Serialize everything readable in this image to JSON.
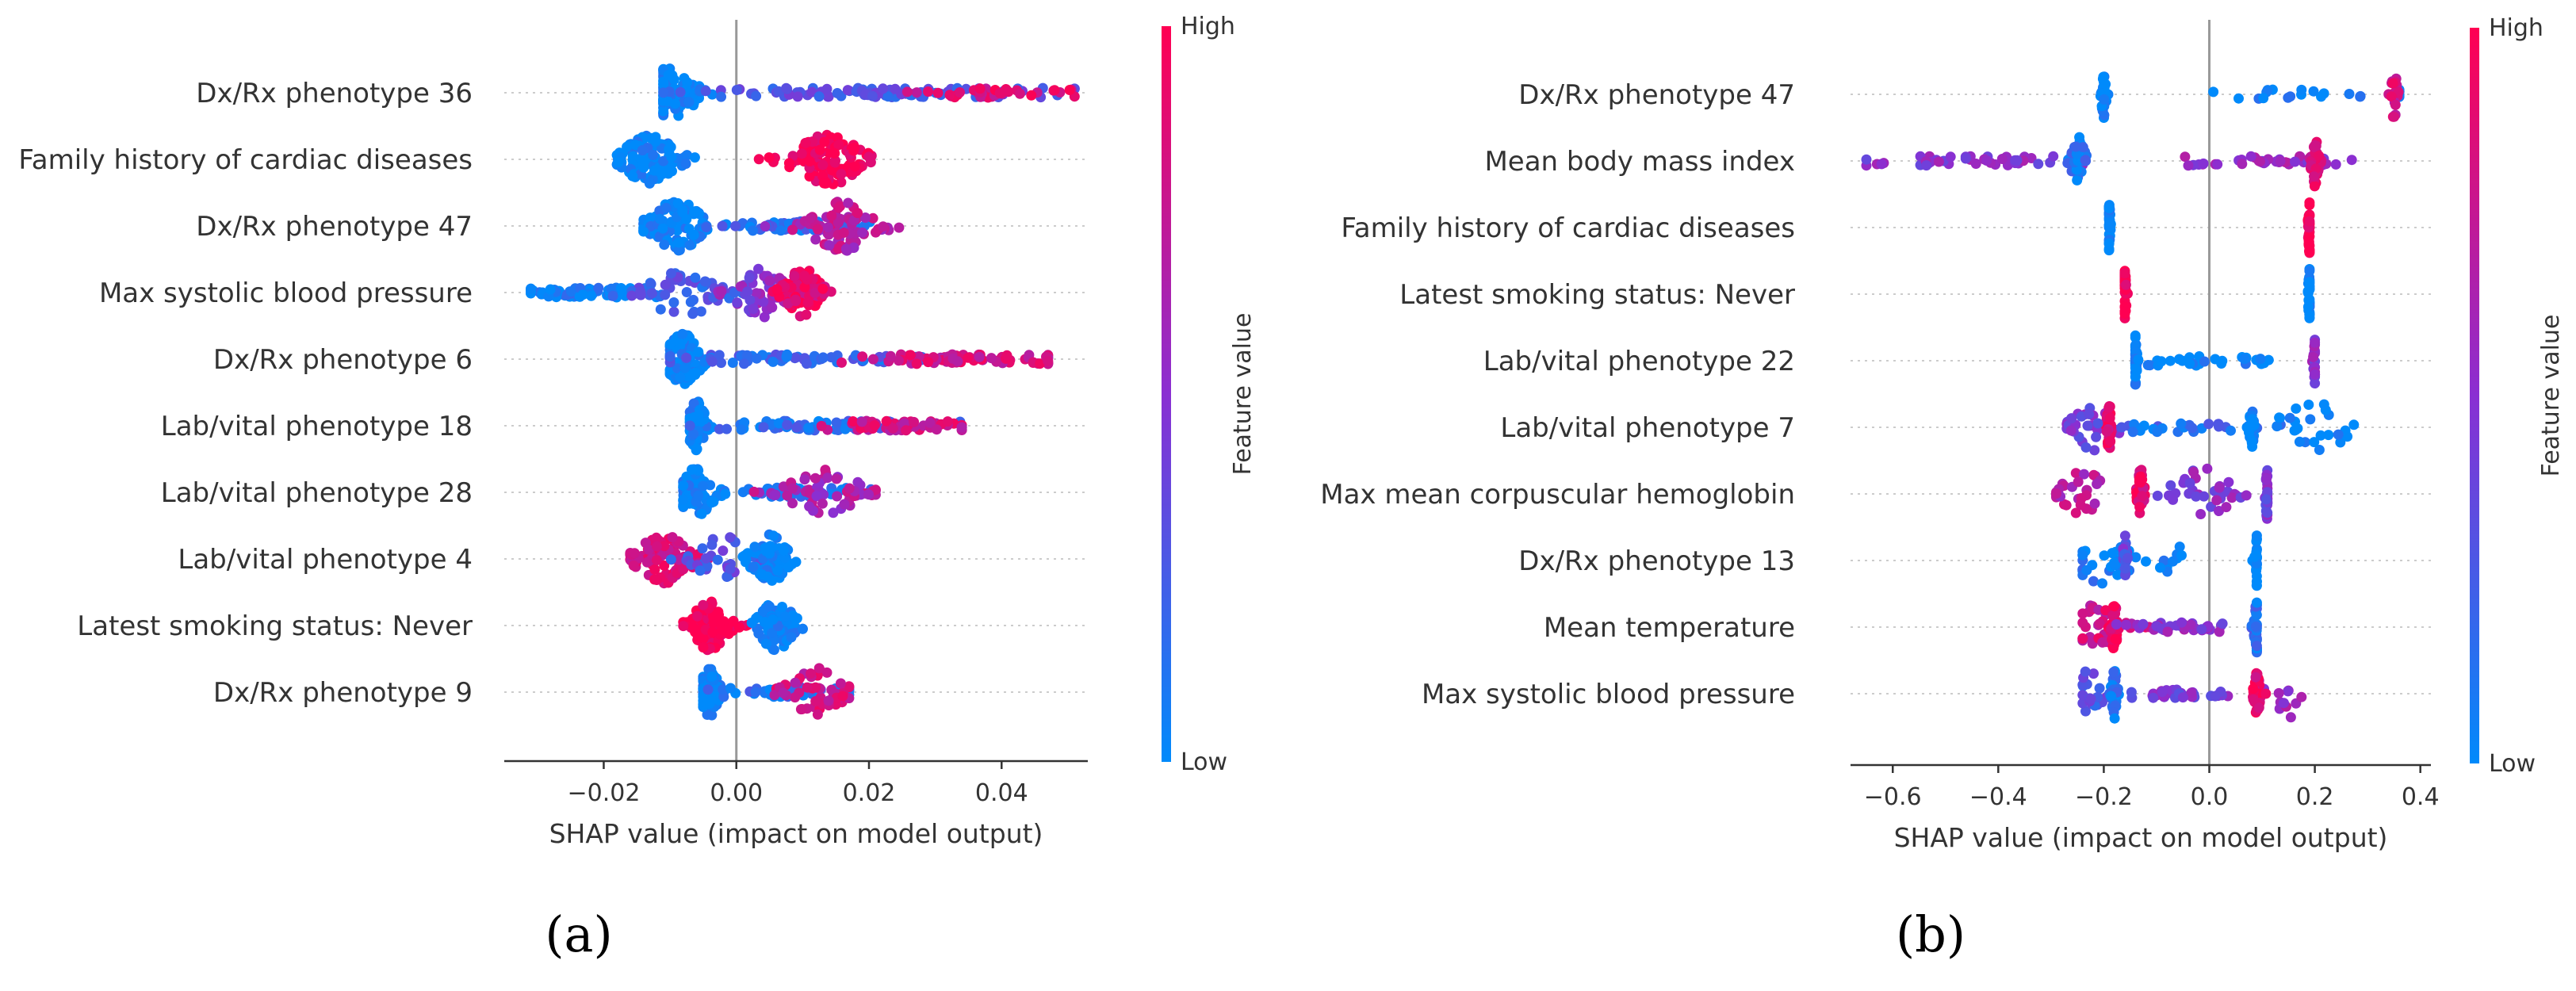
{
  "colors": {
    "low": "#008afb",
    "mid": "#8a2fd2",
    "high": "#ff0052",
    "axis": "#333333",
    "zero": "#999999",
    "grid": "#cccccc"
  },
  "colorbar": {
    "high_label": "High",
    "low_label": "Low",
    "title": "Feature value"
  },
  "chart_data": [
    {
      "type": "scatter",
      "subtype": "shap-beeswarm",
      "panel_label": "(a)",
      "xlabel": "SHAP value (impact on model output)",
      "xlim": [
        -0.035,
        0.053
      ],
      "xticks": [
        -0.02,
        0.0,
        0.02,
        0.04
      ],
      "xtick_labels": [
        "−0.02",
        "0.00",
        "0.02",
        "0.04"
      ],
      "features": [
        {
          "name": "Dx/Rx phenotype 36",
          "clusters": [
            {
              "center": -0.01,
              "spread": 0.003,
              "color": 0.0,
              "n": 90
            },
            {
              "center": 0.022,
              "spread": 0.014,
              "color": 0.3,
              "n": 110
            },
            {
              "center": 0.038,
              "spread": 0.006,
              "color": 0.85,
              "n": 40
            }
          ],
          "range": [
            -0.011,
            0.051
          ]
        },
        {
          "name": "Family history of cardiac diseases",
          "clusters": [
            {
              "center": -0.013,
              "spread": 0.003,
              "color": 0.0,
              "n": 100
            },
            {
              "center": 0.014,
              "spread": 0.004,
              "color": 1.0,
              "n": 110
            }
          ],
          "range": [
            -0.018,
            0.022
          ]
        },
        {
          "name": "Dx/Rx phenotype 47",
          "clusters": [
            {
              "center": -0.009,
              "spread": 0.003,
              "color": 0.0,
              "n": 100
            },
            {
              "center": 0.008,
              "spread": 0.006,
              "color": 0.15,
              "n": 60
            },
            {
              "center": 0.016,
              "spread": 0.004,
              "color": 0.7,
              "n": 80
            }
          ],
          "range": [
            -0.014,
            0.027
          ]
        },
        {
          "name": "Max systolic blood pressure",
          "clusters": [
            {
              "center": -0.024,
              "spread": 0.005,
              "color": 0.05,
              "n": 80
            },
            {
              "center": -0.008,
              "spread": 0.004,
              "color": 0.25,
              "n": 60
            },
            {
              "center": 0.004,
              "spread": 0.003,
              "color": 0.5,
              "n": 60
            },
            {
              "center": 0.01,
              "spread": 0.002,
              "color": 0.9,
              "n": 80
            }
          ],
          "range": [
            -0.031,
            0.015
          ]
        },
        {
          "name": "Dx/Rx phenotype 6",
          "clusters": [
            {
              "center": -0.008,
              "spread": 0.002,
              "color": 0.0,
              "n": 90
            },
            {
              "center": 0.01,
              "spread": 0.01,
              "color": 0.2,
              "n": 70
            },
            {
              "center": 0.035,
              "spread": 0.008,
              "color": 0.8,
              "n": 80
            }
          ],
          "range": [
            -0.01,
            0.047
          ]
        },
        {
          "name": "Lab/vital phenotype 18",
          "clusters": [
            {
              "center": -0.006,
              "spread": 0.001,
              "color": 0.0,
              "n": 70
            },
            {
              "center": 0.01,
              "spread": 0.008,
              "color": 0.15,
              "n": 60
            },
            {
              "center": 0.025,
              "spread": 0.005,
              "color": 0.8,
              "n": 60
            }
          ],
          "range": [
            -0.007,
            0.034
          ]
        },
        {
          "name": "Lab/vital phenotype 28",
          "clusters": [
            {
              "center": -0.006,
              "spread": 0.002,
              "color": 0.0,
              "n": 80
            },
            {
              "center": 0.006,
              "spread": 0.005,
              "color": 0.15,
              "n": 40
            },
            {
              "center": 0.013,
              "spread": 0.004,
              "color": 0.65,
              "n": 60
            }
          ],
          "range": [
            -0.008,
            0.021
          ]
        },
        {
          "name": "Lab/vital phenotype 4",
          "clusters": [
            {
              "center": -0.011,
              "spread": 0.003,
              "color": 0.85,
              "n": 90
            },
            {
              "center": -0.002,
              "spread": 0.003,
              "color": 0.3,
              "n": 30
            },
            {
              "center": 0.005,
              "spread": 0.002,
              "color": 0.0,
              "n": 80
            }
          ],
          "range": [
            -0.016,
            0.009
          ]
        },
        {
          "name": "Latest smoking status: Never",
          "clusters": [
            {
              "center": -0.004,
              "spread": 0.002,
              "color": 1.0,
              "n": 100
            },
            {
              "center": 0.006,
              "spread": 0.002,
              "color": 0.0,
              "n": 80
            }
          ],
          "range": [
            -0.008,
            0.01
          ]
        },
        {
          "name": "Dx/Rx phenotype 9",
          "clusters": [
            {
              "center": -0.004,
              "spread": 0.001,
              "color": 0.0,
              "n": 80
            },
            {
              "center": 0.008,
              "spread": 0.005,
              "color": 0.15,
              "n": 50
            },
            {
              "center": 0.012,
              "spread": 0.003,
              "color": 0.8,
              "n": 50
            }
          ],
          "range": [
            -0.005,
            0.017
          ]
        }
      ]
    },
    {
      "type": "scatter",
      "subtype": "shap-beeswarm",
      "panel_label": "(b)",
      "xlabel": "SHAP value (impact on model output)",
      "xlim": [
        -0.68,
        0.42
      ],
      "xticks": [
        -0.6,
        -0.4,
        -0.2,
        0.0,
        0.2,
        0.4
      ],
      "xtick_labels": [
        "−0.6",
        "−0.4",
        "−0.2",
        "0.0",
        "0.2",
        "0.4"
      ],
      "features": [
        {
          "name": "Dx/Rx phenotype 47",
          "clusters": [
            {
              "center": -0.2,
              "spread": 0.003,
              "color": 0.0,
              "n": 40
            },
            {
              "center": 0.15,
              "spread": 0.15,
              "color": 0.0,
              "n": 25
            },
            {
              "center": 0.35,
              "spread": 0.005,
              "color": 0.8,
              "n": 20
            }
          ],
          "range": [
            -0.21,
            0.36
          ]
        },
        {
          "name": "Mean body mass index",
          "clusters": [
            {
              "center": -0.45,
              "spread": 0.12,
              "color": 0.5,
              "n": 45
            },
            {
              "center": -0.25,
              "spread": 0.01,
              "color": 0.1,
              "n": 40
            },
            {
              "center": 0.12,
              "spread": 0.08,
              "color": 0.55,
              "n": 40
            },
            {
              "center": 0.2,
              "spread": 0.005,
              "color": 0.85,
              "n": 40
            }
          ],
          "range": [
            -0.65,
            0.27
          ]
        },
        {
          "name": "Family history of cardiac diseases",
          "clusters": [
            {
              "center": -0.19,
              "spread": 0.002,
              "color": 0.0,
              "n": 40
            },
            {
              "center": 0.19,
              "spread": 0.002,
              "color": 1.0,
              "n": 40
            }
          ],
          "range": [
            -0.19,
            0.19
          ]
        },
        {
          "name": "Latest smoking status: Never",
          "clusters": [
            {
              "center": -0.16,
              "spread": 0.002,
              "color": 1.0,
              "n": 40
            },
            {
              "center": 0.19,
              "spread": 0.002,
              "color": 0.0,
              "n": 40
            }
          ],
          "range": [
            -0.16,
            0.19
          ]
        },
        {
          "name": "Lab/vital phenotype 22",
          "clusters": [
            {
              "center": -0.14,
              "spread": 0.002,
              "color": 0.0,
              "n": 40
            },
            {
              "center": -0.02,
              "spread": 0.08,
              "color": 0.0,
              "n": 30
            },
            {
              "center": 0.2,
              "spread": 0.002,
              "color": 0.5,
              "n": 20
            }
          ],
          "range": [
            -0.14,
            0.2
          ]
        },
        {
          "name": "Lab/vital phenotype 7",
          "clusters": [
            {
              "center": -0.22,
              "spread": 0.03,
              "color": 0.45,
              "n": 30
            },
            {
              "center": -0.19,
              "spread": 0.003,
              "color": 0.9,
              "n": 30
            },
            {
              "center": -0.05,
              "spread": 0.08,
              "color": 0.15,
              "n": 30
            },
            {
              "center": 0.08,
              "spread": 0.003,
              "color": 0.0,
              "n": 35
            },
            {
              "center": 0.2,
              "spread": 0.05,
              "color": 0.0,
              "n": 25
            }
          ],
          "range": [
            -0.27,
            0.29
          ]
        },
        {
          "name": "Max mean corpuscular hemoglobin",
          "clusters": [
            {
              "center": -0.24,
              "spread": 0.03,
              "color": 0.7,
              "n": 30
            },
            {
              "center": -0.13,
              "spread": 0.005,
              "color": 0.9,
              "n": 40
            },
            {
              "center": -0.01,
              "spread": 0.05,
              "color": 0.5,
              "n": 35
            },
            {
              "center": 0.11,
              "spread": 0.003,
              "color": 0.45,
              "n": 30
            }
          ],
          "range": [
            -0.29,
            0.11
          ]
        },
        {
          "name": "Dx/Rx phenotype 13",
          "clusters": [
            {
              "center": -0.2,
              "spread": 0.04,
              "color": 0.05,
              "n": 30
            },
            {
              "center": -0.16,
              "spread": 0.003,
              "color": 0.35,
              "n": 20
            },
            {
              "center": -0.07,
              "spread": 0.02,
              "color": 0.0,
              "n": 10
            },
            {
              "center": 0.09,
              "spread": 0.003,
              "color": 0.0,
              "n": 30
            }
          ],
          "range": [
            -0.24,
            0.09
          ]
        },
        {
          "name": "Mean temperature",
          "clusters": [
            {
              "center": -0.21,
              "spread": 0.03,
              "color": 0.8,
              "n": 35
            },
            {
              "center": -0.18,
              "spread": 0.004,
              "color": 0.95,
              "n": 40
            },
            {
              "center": -0.05,
              "spread": 0.06,
              "color": 0.5,
              "n": 40
            },
            {
              "center": 0.09,
              "spread": 0.004,
              "color": 0.15,
              "n": 30
            }
          ],
          "range": [
            -0.24,
            0.09
          ]
        },
        {
          "name": "Max systolic blood pressure",
          "clusters": [
            {
              "center": -0.23,
              "spread": 0.02,
              "color": 0.3,
              "n": 20
            },
            {
              "center": -0.18,
              "spread": 0.004,
              "color": 0.1,
              "n": 40
            },
            {
              "center": -0.05,
              "spread": 0.06,
              "color": 0.45,
              "n": 40
            },
            {
              "center": 0.09,
              "spread": 0.004,
              "color": 0.9,
              "n": 35
            },
            {
              "center": 0.15,
              "spread": 0.02,
              "color": 0.6,
              "n": 10
            }
          ],
          "range": [
            -0.24,
            0.18
          ]
        }
      ]
    }
  ]
}
